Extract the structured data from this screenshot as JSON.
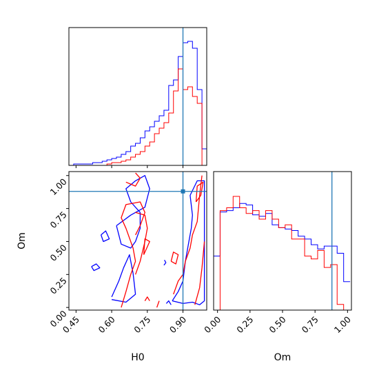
{
  "chart_data": [
    {
      "type": "histogram",
      "panel": "H0 marginal",
      "x_param": "H0",
      "xlim": [
        0.42,
        1.0
      ],
      "ticks_x": [
        0.45,
        0.6,
        0.75,
        0.9
      ],
      "show_tick_labels": false,
      "truth_x": 0.9,
      "bin_edges": [
        0.42,
        0.44,
        0.46,
        0.48,
        0.5,
        0.52,
        0.54,
        0.56,
        0.58,
        0.6,
        0.62,
        0.64,
        0.66,
        0.68,
        0.7,
        0.72,
        0.74,
        0.76,
        0.78,
        0.8,
        0.82,
        0.84,
        0.86,
        0.88,
        0.9,
        0.92,
        0.94,
        0.96,
        0.98,
        1.0
      ],
      "series": [
        {
          "color": "#0000ff",
          "values": [
            0,
            1,
            1,
            1,
            1,
            2,
            2,
            3,
            4,
            5,
            6,
            8,
            10,
            14,
            16,
            20,
            25,
            28,
            32,
            36,
            40,
            58,
            62,
            79,
            89,
            90,
            85,
            55,
            12
          ]
        },
        {
          "color": "#ff0000",
          "values": [
            0,
            0,
            0,
            0,
            0,
            0,
            0,
            0,
            1,
            2,
            2,
            3,
            4,
            6,
            8,
            10,
            14,
            17,
            23,
            27,
            31,
            38,
            54,
            70,
            55,
            57,
            50,
            45,
            0
          ]
        }
      ]
    },
    {
      "type": "contour",
      "panel": "H0 vs Om",
      "xlabel": "H0",
      "ylabel": "Om",
      "xlim": [
        0.42,
        1.0
      ],
      "ylim": [
        -0.02,
        1.03
      ],
      "ticks_x": [
        "0.45",
        "0.60",
        "0.75",
        "0.90"
      ],
      "ticks_y": [
        "0.00",
        "0.25",
        "0.50",
        "0.75",
        "1.00"
      ],
      "truth": [
        0.9,
        0.88
      ],
      "series": [
        {
          "color": "#0000ff",
          "contours": [
            [
              [
                0.555,
                0.55
              ],
              [
                0.575,
                0.58
              ],
              [
                0.59,
                0.52
              ],
              [
                0.565,
                0.5
              ],
              [
                0.555,
                0.55
              ]
            ],
            [
              [
                0.515,
                0.31
              ],
              [
                0.535,
                0.33
              ],
              [
                0.55,
                0.3
              ],
              [
                0.525,
                0.28
              ],
              [
                0.515,
                0.31
              ]
            ],
            [
              [
                0.6,
                0.06
              ],
              [
                0.66,
                0.04
              ],
              [
                0.7,
                0.1
              ],
              [
                0.69,
                0.26
              ],
              [
                0.675,
                0.4
              ],
              [
                0.65,
                0.3
              ],
              [
                0.63,
                0.2
              ],
              [
                0.6,
                0.08
              ]
            ],
            [
              [
                0.62,
                0.62
              ],
              [
                0.68,
                0.7
              ],
              [
                0.74,
                0.76
              ],
              [
                0.76,
                0.9
              ],
              [
                0.74,
                1.0
              ],
              [
                0.7,
                0.96
              ],
              [
                0.66,
                0.9
              ],
              [
                0.68,
                0.8
              ],
              [
                0.72,
                0.72
              ],
              [
                0.72,
                0.6
              ],
              [
                0.7,
                0.5
              ],
              [
                0.68,
                0.45
              ],
              [
                0.64,
                0.48
              ],
              [
                0.62,
                0.62
              ]
            ],
            [
              [
                0.855,
                0.05
              ],
              [
                0.88,
                0.12
              ],
              [
                0.9,
                0.2
              ],
              [
                0.91,
                0.35
              ],
              [
                0.925,
                0.5
              ],
              [
                0.935,
                0.6
              ],
              [
                0.94,
                0.7
              ],
              [
                0.93,
                0.85
              ],
              [
                0.96,
                0.96
              ],
              [
                0.99,
                0.96
              ],
              [
                0.99,
                0.05
              ],
              [
                0.97,
                0.02
              ],
              [
                0.94,
                0.04
              ],
              [
                0.9,
                0.03
              ],
              [
                0.855,
                0.05
              ]
            ],
            [
              [
                0.83,
                0.03
              ],
              [
                0.84,
                0.05
              ],
              [
                0.85,
                0.02
              ]
            ],
            [
              [
                0.822,
                0.36
              ],
              [
                0.828,
                0.34
              ],
              [
                0.82,
                0.32
              ]
            ]
          ]
        },
        {
          "color": "#ff0000",
          "contours": [
            [
              [
                0.64,
                0.0
              ],
              [
                0.66,
                0.12
              ],
              [
                0.68,
                0.25
              ],
              [
                0.7,
                0.35
              ],
              [
                0.69,
                0.45
              ],
              [
                0.66,
                0.6
              ],
              [
                0.64,
                0.68
              ],
              [
                0.66,
                0.78
              ],
              [
                0.72,
                0.8
              ],
              [
                0.74,
                0.72
              ],
              [
                0.72,
                0.62
              ],
              [
                0.7,
                0.55
              ]
            ],
            [
              [
                0.66,
                0.95
              ],
              [
                0.7,
                0.92
              ],
              [
                0.72,
                0.98
              ],
              [
                0.7,
                1.02
              ]
            ],
            [
              [
                0.7,
                0.25
              ],
              [
                0.72,
                0.35
              ],
              [
                0.74,
                0.5
              ],
              [
                0.75,
                0.6
              ],
              [
                0.74,
                0.7
              ],
              [
                0.7,
                0.72
              ]
            ],
            [
              [
                0.735,
                0.4
              ],
              [
                0.75,
                0.46
              ],
              [
                0.76,
                0.5
              ],
              [
                0.74,
                0.52
              ],
              [
                0.735,
                0.4
              ]
            ],
            [
              [
                0.74,
                0.05
              ],
              [
                0.75,
                0.08
              ],
              [
                0.76,
                0.05
              ]
            ],
            [
              [
                0.79,
                0.0
              ],
              [
                0.8,
                0.05
              ]
            ],
            [
              [
                0.86,
                0.1
              ],
              [
                0.88,
                0.2
              ],
              [
                0.9,
                0.25
              ],
              [
                0.91,
                0.35
              ],
              [
                0.93,
                0.45
              ],
              [
                0.94,
                0.55
              ],
              [
                0.96,
                0.65
              ],
              [
                0.97,
                0.85
              ],
              [
                0.98,
                1.0
              ]
            ],
            [
              [
                0.95,
                0.02
              ],
              [
                0.97,
                0.15
              ],
              [
                0.98,
                0.3
              ],
              [
                0.99,
                0.5
              ]
            ],
            [
              [
                0.85,
                0.35
              ],
              [
                0.87,
                0.33
              ],
              [
                0.88,
                0.4
              ],
              [
                0.86,
                0.42
              ],
              [
                0.85,
                0.35
              ]
            ],
            [
              [
                0.955,
                0.8
              ],
              [
                0.975,
                0.85
              ],
              [
                0.985,
                0.95
              ],
              [
                0.96,
                0.92
              ],
              [
                0.955,
                0.8
              ]
            ]
          ]
        }
      ]
    },
    {
      "type": "histogram",
      "panel": "Om marginal",
      "x_param": "Om",
      "xlabel": "Om",
      "xlim": [
        -0.03,
        1.03
      ],
      "ticks_x": [
        "0.00",
        "0.25",
        "0.50",
        "0.75",
        "1.00"
      ],
      "truth_x": 0.88,
      "bin_edges": [
        -0.03,
        0.02,
        0.07,
        0.12,
        0.17,
        0.22,
        0.27,
        0.32,
        0.37,
        0.42,
        0.47,
        0.52,
        0.57,
        0.62,
        0.67,
        0.72,
        0.77,
        0.82,
        0.87,
        0.92,
        0.97,
        1.02
      ],
      "series": [
        {
          "color": "#0000ff",
          "values": [
            0.38,
            0.69,
            0.7,
            0.72,
            0.75,
            0.74,
            0.67,
            0.66,
            0.68,
            0.6,
            0.58,
            0.57,
            0.56,
            0.52,
            0.5,
            0.46,
            0.43,
            0.45,
            0.45,
            0.4,
            0.2
          ]
        },
        {
          "color": "#ff0000",
          "values": [
            0,
            0.7,
            0.72,
            0.8,
            0.72,
            0.68,
            0.7,
            0.64,
            0.7,
            0.64,
            0.58,
            0.6,
            0.5,
            0.5,
            0.38,
            0.36,
            0.42,
            0.3,
            0.32,
            0.04,
            0.0
          ]
        }
      ]
    }
  ]
}
